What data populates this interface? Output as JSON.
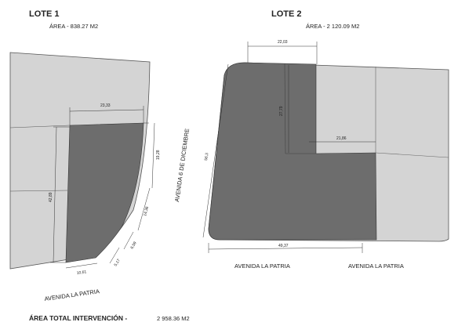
{
  "lote1": {
    "title": "LOTE 1",
    "area": "ÁREA -  838.27 M2"
  },
  "lote2": {
    "title": "LOTE 2",
    "area": "ÁREA -  2 120.09 M2"
  },
  "streets": {
    "patria_l1": "AVENIDA LA PATRIA",
    "patria_l2a": "AVENIDA LA PATRIA",
    "patria_l2b": "AVENIDA LA PATRIA",
    "diciembre": "AVENIDA 6 DE DICIEMBRE"
  },
  "dims": {
    "l1_top": "23,33",
    "l1_left": "42,89",
    "l1_r1": "19,28",
    "l1_r2": "14,36",
    "l1_d1": "6,59",
    "l1_d2": "5,17",
    "l1_bottom": "10,61",
    "l2_top": "22,03",
    "l2_left": "56,3",
    "l2_inner_v": "27,79",
    "l2_inner_h": "21,86",
    "l2_bottom": "49,37"
  },
  "total": {
    "label": "ÁREA TOTAL INTERVENCIÓN -",
    "value": "2 958.36 M2"
  },
  "colors": {
    "light": "#d4d4d4",
    "dark": "#6d6d6d",
    "line": "#333333"
  }
}
